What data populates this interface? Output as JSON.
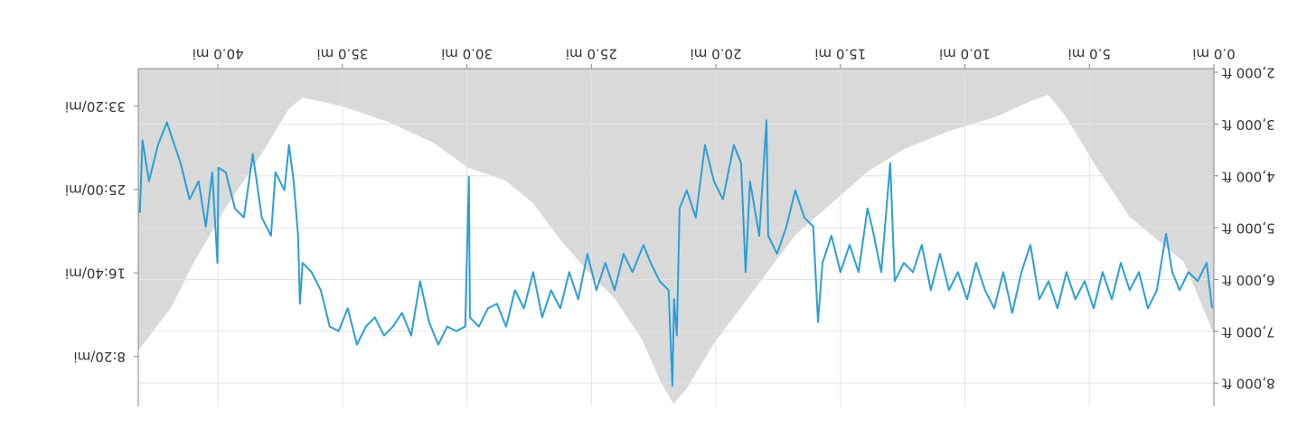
{
  "chart_data": {
    "type": "line",
    "grid": true,
    "xlim": [
      0,
      43.2
    ],
    "xticks": [
      {
        "value": 0,
        "label": "0.0 mi"
      },
      {
        "value": 5,
        "label": "5.0 mi"
      },
      {
        "value": 10,
        "label": "10.0 mi"
      },
      {
        "value": 15,
        "label": "15.0 mi"
      },
      {
        "value": 20,
        "label": "20.0 mi"
      },
      {
        "value": 25,
        "label": "25.0 mi"
      },
      {
        "value": 30,
        "label": "30.0 mi"
      },
      {
        "value": 35,
        "label": "35.0 mi"
      },
      {
        "value": 40,
        "label": "40.0 mi"
      }
    ],
    "ylim": [
      1930,
      8450
    ],
    "yticks": [
      {
        "value": 2000,
        "label": "2,000 ft"
      },
      {
        "value": 3000,
        "label": "3,000 ft"
      },
      {
        "value": 4000,
        "label": "4,000 ft"
      },
      {
        "value": 5000,
        "label": "5,000 ft"
      },
      {
        "value": 6000,
        "label": "6,000 ft"
      },
      {
        "value": 7000,
        "label": "7,000 ft"
      },
      {
        "value": 8000,
        "label": "8,000 ft"
      }
    ],
    "y2lim": [
      2223,
      201
    ],
    "y2ticks": [
      {
        "value": 500,
        "label": "8:20/mi"
      },
      {
        "value": 1000,
        "label": "16:40/mi"
      },
      {
        "value": 1500,
        "label": "25:00/mi"
      },
      {
        "value": 2000,
        "label": "33:20/mi"
      }
    ],
    "series": [
      {
        "type": "area",
        "color": "#d9d9d9",
        "x": [
          0,
          1.2,
          2.29,
          3.38,
          4.83,
          5.92,
          6.65,
          7.37,
          8.82,
          10.64,
          12.45,
          13.91,
          15.36,
          16.81,
          17.9,
          18.99,
          20.08,
          21.17,
          21.71,
          22.26,
          22.98,
          24.07,
          25.16,
          26.25,
          27.34,
          28.43,
          29.99,
          31.34,
          33.15,
          34.97,
          36.6,
          37.15,
          38.24,
          39.69,
          40.96,
          41.87,
          43.2
        ],
        "values": [
          7058,
          5663,
          5227,
          4791,
          3744,
          2872,
          2436,
          2558,
          2872,
          3134,
          3483,
          3919,
          4529,
          5140,
          5837,
          6535,
          7233,
          8105,
          8402,
          7930,
          7146,
          6361,
          5837,
          5227,
          4529,
          4093,
          3832,
          3361,
          2959,
          2663,
          2488,
          2698,
          3570,
          4616,
          5663,
          6535,
          7370
        ]
      },
      {
        "type": "line",
        "color": "#2a9fd8",
        "axis": "y2",
        "x": [
          0.07,
          0.29,
          0.65,
          1.02,
          1.38,
          1.67,
          1.92,
          2.29,
          2.65,
          3.01,
          3.38,
          3.74,
          4.1,
          4.47,
          4.83,
          5.19,
          5.56,
          5.92,
          6.28,
          6.64,
          7.01,
          7.37,
          7.73,
          8.1,
          8.46,
          8.82,
          9.19,
          9.55,
          9.91,
          10.28,
          10.64,
          11.0,
          11.37,
          11.73,
          12.09,
          12.45,
          12.82,
          13.0,
          13.36,
          13.73,
          13.91,
          14.27,
          14.63,
          15.0,
          15.36,
          15.72,
          15.9,
          16.09,
          16.45,
          16.81,
          17.17,
          17.54,
          17.9,
          17.97,
          18.26,
          18.63,
          18.81,
          18.99,
          19.28,
          19.72,
          20.08,
          20.44,
          20.81,
          21.17,
          21.46,
          21.57,
          21.68,
          21.75,
          21.9,
          22.26,
          22.62,
          22.91,
          23.35,
          23.71,
          24.07,
          24.44,
          24.8,
          25.16,
          25.53,
          25.89,
          26.25,
          26.62,
          26.98,
          27.34,
          27.71,
          28.07,
          28.43,
          28.79,
          29.16,
          29.52,
          29.88,
          29.92,
          30.07,
          30.43,
          30.79,
          31.15,
          31.52,
          31.88,
          32.24,
          32.61,
          32.97,
          33.33,
          33.7,
          34.06,
          34.42,
          34.79,
          35.15,
          35.51,
          35.87,
          36.24,
          36.6,
          36.71,
          36.78,
          36.96,
          37.15,
          37.33,
          37.69,
          37.87,
          38.24,
          38.6,
          38.96,
          39.32,
          39.69,
          39.98,
          40.02,
          40.23,
          40.49,
          40.78,
          41.14,
          41.5,
          41.87,
          42.05,
          42.41,
          42.77,
          43.03,
          43.14
        ],
        "values": [
          788,
          1060,
          951,
          1005,
          897,
          1005,
          1234,
          897,
          788,
          1005,
          897,
          1060,
          842,
          1005,
          788,
          951,
          842,
          1005,
          788,
          951,
          842,
          1168,
          1005,
          761,
          1005,
          788,
          897,
          1060,
          842,
          1005,
          897,
          1114,
          897,
          1168,
          1005,
          1060,
          951,
          1658,
          1005,
          1277,
          1386,
          1005,
          1168,
          1005,
          1223,
          1060,
          706,
          1277,
          1332,
          1495,
          1277,
          1114,
          1223,
          1913,
          1223,
          1549,
          1005,
          1658,
          1766,
          1440,
          1549,
          1766,
          1332,
          1495,
          1386,
          625,
          842,
          326,
          897,
          951,
          1060,
          1168,
          1005,
          1114,
          897,
          1060,
          897,
          1114,
          842,
          1005,
          788,
          897,
          734,
          1005,
          788,
          897,
          679,
          815,
          788,
          679,
          734,
          1576,
          679,
          652,
          679,
          571,
          706,
          951,
          625,
          761,
          679,
          625,
          734,
          679,
          571,
          788,
          652,
          679,
          897,
          1005,
          1060,
          815,
          1223,
          1549,
          1766,
          1495,
          1603,
          1223,
          1332,
          1712,
          1332,
          1386,
          1603,
          1630,
          1060,
          1603,
          1277,
          1549,
          1440,
          1658,
          1821,
          1902,
          1766,
          1549,
          1793,
          1359
        ]
      }
    ]
  }
}
